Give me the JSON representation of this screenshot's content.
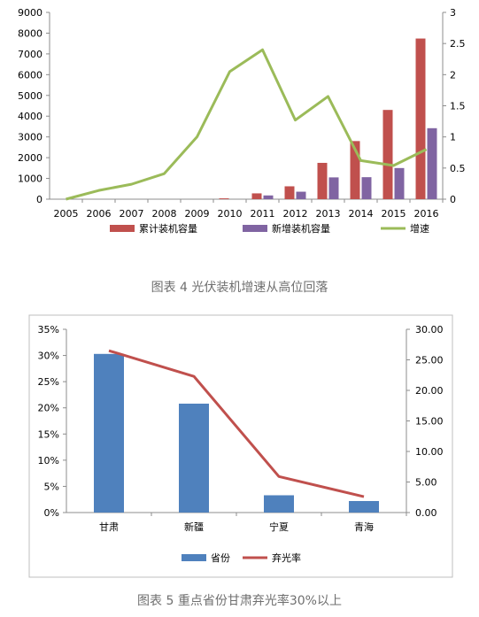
{
  "chart_data": [
    {
      "type": "bar",
      "title": "",
      "categories": [
        "2005",
        "2006",
        "2007",
        "2008",
        "2009",
        "2010",
        "2011",
        "2012",
        "2013",
        "2014",
        "2015",
        "2016"
      ],
      "series": [
        {
          "name": "累计装机容量",
          "axis": "left",
          "kind": "bar",
          "color": "#C0504D",
          "values": [
            0,
            0,
            0,
            0,
            0,
            40,
            280,
            620,
            1750,
            2800,
            4300,
            7740
          ]
        },
        {
          "name": "新增装机容量",
          "axis": "left",
          "kind": "bar",
          "color": "#8064A2",
          "values": [
            0,
            0,
            0,
            0,
            0,
            0,
            180,
            360,
            1050,
            1060,
            1500,
            3420
          ]
        },
        {
          "name": "增速",
          "axis": "right",
          "kind": "line",
          "color": "#9BBB59",
          "values": [
            0,
            0.14,
            0.24,
            0.41,
            1.0,
            2.05,
            2.4,
            1.27,
            1.65,
            0.62,
            0.54,
            0.8
          ]
        }
      ],
      "ylim_left": [
        0,
        9000
      ],
      "yticks_left": [
        "0",
        "1000",
        "2000",
        "3000",
        "4000",
        "5000",
        "6000",
        "7000",
        "8000",
        "9000"
      ],
      "ylim_right": [
        0,
        3
      ],
      "yticks_right": [
        "0",
        "0.5",
        "1",
        "1.5",
        "2",
        "2.5",
        "3"
      ],
      "legend": "bottom",
      "grid": false
    },
    {
      "type": "bar",
      "title": "",
      "categories": [
        "甘肃",
        "新疆",
        "宁夏",
        "青海"
      ],
      "series": [
        {
          "name": "省份",
          "axis": "left",
          "kind": "bar",
          "color": "#4F81BD",
          "values": [
            30.3,
            20.8,
            3.3,
            2.2
          ]
        },
        {
          "name": "弃光率",
          "axis": "right",
          "kind": "line",
          "color": "#C0504D",
          "values": [
            26.5,
            22.3,
            5.9,
            2.6
          ]
        }
      ],
      "ylim_left": [
        0,
        35
      ],
      "yticks_left": [
        "0%",
        "5%",
        "10%",
        "15%",
        "20%",
        "25%",
        "30%",
        "35%"
      ],
      "ylim_right": [
        0,
        30
      ],
      "yticks_right": [
        "0.00",
        "5.00",
        "10.00",
        "15.00",
        "20.00",
        "25.00",
        "30.00"
      ],
      "legend": "bottom",
      "grid": false
    }
  ],
  "captions": {
    "chart1": "图表 4 光伏装机增速从高位回落",
    "chart2": "图表 5 重点省份甘肃弃光率30%以上"
  }
}
